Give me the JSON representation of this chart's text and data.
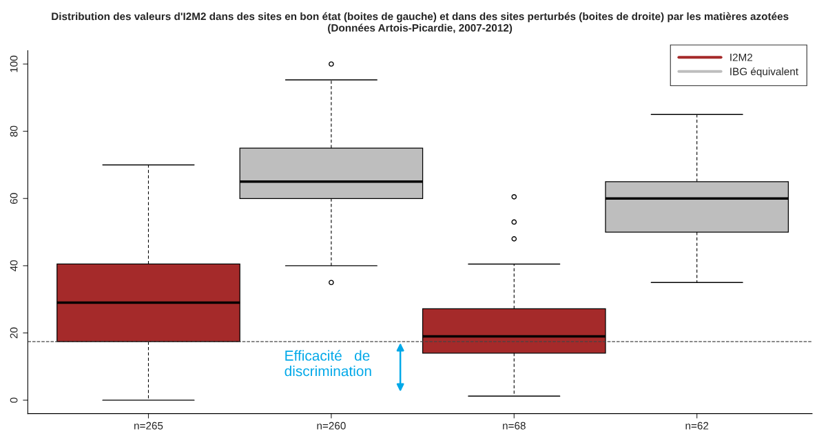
{
  "chart_data": {
    "type": "box",
    "title": "Distribution des valeurs d'I2M2 dans des sites en bon état (boites de gauche) et dans des sites perturbés (boites de droite) par les matières azotées\n(Données Artois-Picardie, 2007-2012)",
    "categories": [
      "n=265",
      "n=260",
      "n=68",
      "n=62"
    ],
    "series": [
      {
        "name": "I2M2",
        "color": "#a52a2a",
        "boxes": [
          {
            "low": 0,
            "q1": 17.4,
            "median": 29,
            "q3": 40.5,
            "high": 70
          },
          null,
          {
            "low": 1.2,
            "q1": 14,
            "median": 19,
            "q3": 27.2,
            "high": 40.5,
            "outliers": [
              48,
              53,
              60.5
            ]
          },
          null
        ]
      },
      {
        "name": "IBG équivalent",
        "color": "#bebebe",
        "boxes": [
          null,
          {
            "low": 40,
            "q1": 60,
            "median": 65,
            "q3": 75,
            "high": 95.3,
            "outliers": [
              35,
              100
            ]
          },
          null,
          {
            "low": 35,
            "q1": 50,
            "median": 60,
            "q3": 65,
            "high": 85
          }
        ]
      }
    ],
    "ylim": [
      -4,
      104
    ],
    "yticks": [
      0,
      20,
      40,
      60,
      80,
      100
    ],
    "grid": false,
    "legend": "top right",
    "ref_lines": [
      {
        "axis": "y",
        "value": 17.4,
        "line_style": "dashed",
        "color": "#444444"
      }
    ],
    "annotations": [
      "Efficacité   de\ndiscrimination"
    ]
  }
}
